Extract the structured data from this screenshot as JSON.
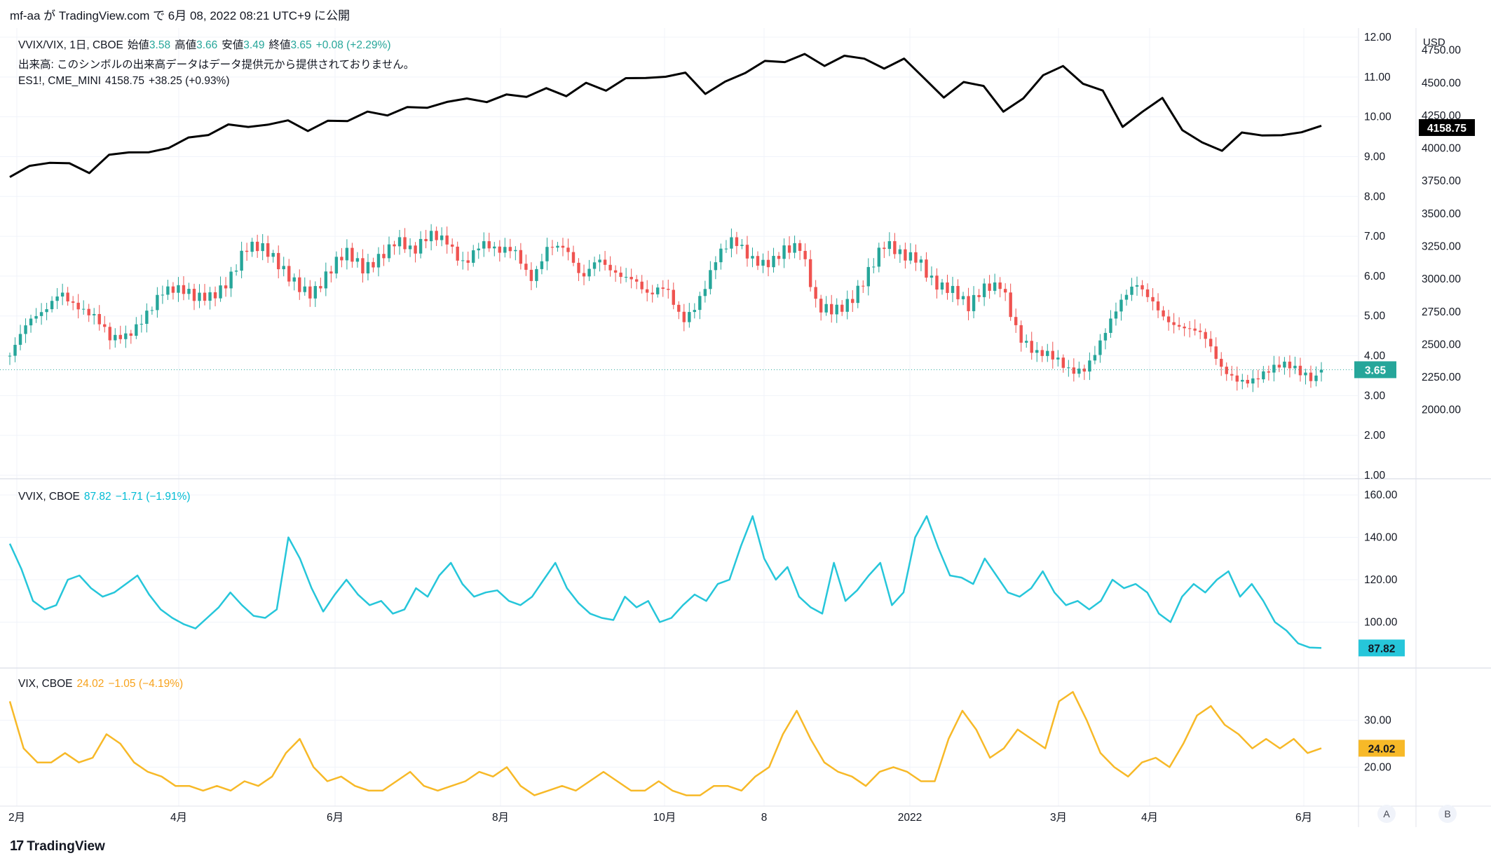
{
  "header": {
    "text": "mf-aa が TradingView.com で 6月 08, 2022 08:21 UTC+9 に公開"
  },
  "legend_main": {
    "symbol": "VVIX/VIX, 1日, CBOE",
    "open_label": "始値",
    "open": "3.58",
    "high_label": "高値",
    "high": "3.66",
    "low_label": "安値",
    "low": "3.49",
    "close_label": "終値",
    "close": "3.65",
    "change": "+0.08 (+2.29%)"
  },
  "legend_note": "出来高: このシンボルの出来高データはデータ提供元から提供されておりません。",
  "legend_es": {
    "symbol": "ES1!, CME_MINI",
    "value": "4158.75",
    "change": "+38.25 (+0.93%)"
  },
  "legend_vvix": {
    "symbol": "VVIX, CBOE",
    "value": "87.82",
    "change": "−1.71 (−1.91%)"
  },
  "legend_vix": {
    "symbol": "VIX, CBOE",
    "value": "24.02",
    "change": "−1.05 (−4.19%)"
  },
  "price_axis_unit": "USD",
  "footer": {
    "brand": "TradingView",
    "logo": "17"
  },
  "axis_buttons": {
    "a": "A",
    "b": "B"
  },
  "colors": {
    "up": "#26a69a",
    "down": "#ef5350",
    "es": "#000000",
    "vvix": "#26c6da",
    "vix": "#f7b928",
    "grid": "#f0f3fa"
  },
  "chart_data": [
    {
      "type": "candlestick",
      "name": "VVIX/VIX",
      "ylim": [
        1.0,
        12.0
      ],
      "y_ticks": [
        "12.00",
        "11.00",
        "10.00",
        "9.00",
        "8.00",
        "7.00",
        "6.00",
        "5.00",
        "4.00",
        "3.00",
        "2.00",
        "1.00"
      ],
      "last_value_label": "3.65",
      "x_tick_labels": [
        "2月",
        "4月",
        "6月",
        "8月",
        "10月",
        "8",
        "2022",
        "3月",
        "4月",
        "6月"
      ],
      "close_path": [
        4.0,
        4.6,
        5.0,
        5.8,
        5.4,
        4.9,
        4.2,
        4.5,
        5.2,
        5.7,
        5.5,
        5.3,
        5.6,
        6.1,
        6.7,
        6.5,
        6.2,
        6.0,
        5.7,
        6.0,
        6.4,
        6.2,
        6.7,
        7.0,
        6.4,
        6.9,
        7.0,
        6.5,
        6.8,
        6.4,
        6.6,
        6.1,
        6.9,
        6.6,
        5.7,
        6.5,
        6.3,
        6.0,
        5.3,
        5.6,
        5.0,
        5.6,
        6.4,
        6.7,
        6.4,
        6.5,
        6.8,
        6.6,
        5.0,
        5.2,
        5.6,
        6.1,
        6.6,
        6.4,
        6.6,
        6.0,
        5.6,
        5.0,
        5.7,
        6.0,
        4.6,
        3.9,
        3.8,
        3.7,
        3.9,
        4.5,
        5.1,
        5.7,
        5.5,
        5.0,
        4.6,
        4.3,
        3.7,
        3.6,
        3.5,
        3.5,
        3.6,
        3.6,
        3.65
      ],
      "ohlc_last": {
        "open": 3.58,
        "high": 3.66,
        "low": 3.49,
        "close": 3.65
      },
      "overlay": {
        "name": "ES1!",
        "ylim": [
          1500,
          4850
        ],
        "y_ticks": [
          "4750.00",
          "4500.00",
          "4250.00",
          "4000.00",
          "3750.00",
          "3500.00",
          "3250.00",
          "3000.00",
          "2750.00",
          "2500.00",
          "2250.00",
          "2000.00"
        ],
        "last_value_label": "4158.75",
        "values": [
          3780,
          3860,
          3900,
          3870,
          3830,
          3930,
          3990,
          3950,
          4020,
          4070,
          4110,
          4180,
          4160,
          4190,
          4200,
          4150,
          4190,
          4230,
          4260,
          4270,
          4300,
          4320,
          4350,
          4380,
          4360,
          4400,
          4410,
          4440,
          4420,
          4480,
          4460,
          4520,
          4550,
          4540,
          4580,
          4420,
          4500,
          4590,
          4650,
          4680,
          4700,
          4650,
          4690,
          4700,
          4600,
          4690,
          4540,
          4380,
          4520,
          4460,
          4300,
          4360,
          4580,
          4610,
          4510,
          4430,
          4170,
          4280,
          4380,
          4150,
          4030,
          4000,
          4100,
          4120,
          4080,
          4140,
          4158.75
        ]
      }
    },
    {
      "type": "line",
      "name": "VVIX",
      "ylim": [
        81,
        163
      ],
      "y_ticks": [
        "160.00",
        "140.00",
        "120.00",
        "100.00"
      ],
      "last_value_label": "87.82",
      "values": [
        137,
        125,
        110,
        106,
        108,
        120,
        122,
        116,
        112,
        114,
        118,
        122,
        113,
        106,
        102,
        99,
        97,
        102,
        107,
        114,
        108,
        103,
        102,
        106,
        140,
        130,
        116,
        105,
        113,
        120,
        113,
        108,
        110,
        104,
        106,
        116,
        112,
        122,
        128,
        118,
        112,
        114,
        115,
        110,
        108,
        112,
        120,
        128,
        116,
        109,
        104,
        102,
        101,
        112,
        107,
        110,
        100,
        102,
        108,
        113,
        110,
        118,
        120,
        136,
        150,
        130,
        120,
        126,
        112,
        107,
        104,
        128,
        110,
        115,
        122,
        128,
        108,
        114,
        140,
        150,
        135,
        122,
        121,
        118,
        130,
        122,
        114,
        112,
        116,
        124,
        114,
        108,
        110,
        106,
        110,
        120,
        116,
        118,
        114,
        104,
        100,
        112,
        118,
        114,
        120,
        124,
        112,
        118,
        110,
        100,
        96,
        90,
        88,
        87.82
      ]
    },
    {
      "type": "line",
      "name": "VIX",
      "ylim": [
        12,
        39
      ],
      "y_ticks": [
        "30.00",
        "20.00"
      ],
      "last_value_label": "24.02",
      "values": [
        34,
        24,
        21,
        21,
        23,
        21,
        22,
        27,
        25,
        21,
        19,
        18,
        16,
        16,
        15,
        16,
        15,
        17,
        16,
        18,
        23,
        26,
        20,
        17,
        18,
        16,
        15,
        15,
        17,
        19,
        16,
        15,
        16,
        17,
        19,
        18,
        20,
        16,
        14,
        15,
        16,
        15,
        17,
        19,
        17,
        15,
        15,
        17,
        15,
        14,
        14,
        16,
        16,
        15,
        18,
        20,
        27,
        32,
        26,
        21,
        19,
        18,
        16,
        19,
        20,
        19,
        17,
        17,
        26,
        32,
        28,
        22,
        24,
        28,
        26,
        24,
        34,
        36,
        30,
        23,
        20,
        18,
        21,
        22,
        20,
        25,
        31,
        33,
        29,
        27,
        24,
        26,
        24,
        26,
        23,
        24.02
      ]
    }
  ]
}
